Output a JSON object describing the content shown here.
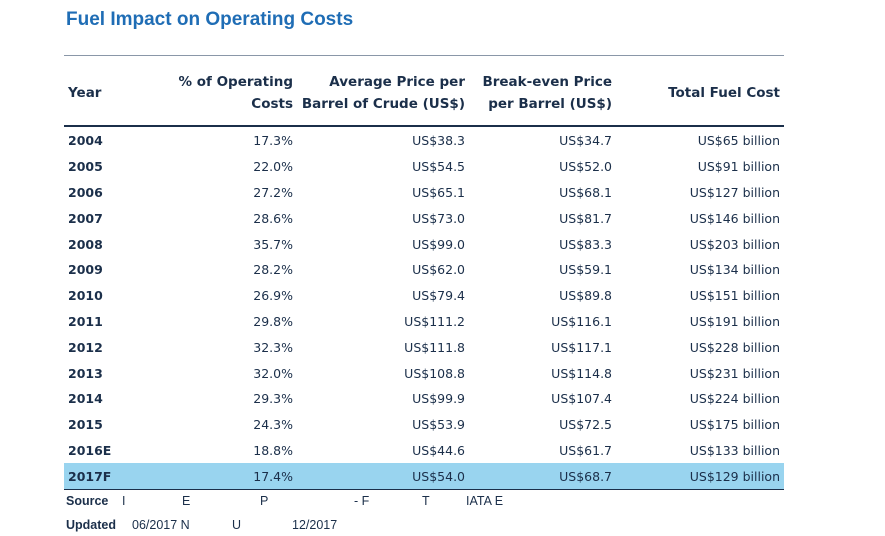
{
  "title": "Fuel Impact on Operating Costs",
  "headers": {
    "year": "Year",
    "pct_line1": "% of Operating",
    "pct_line2": "Costs",
    "avg_line1": "Average Price per",
    "avg_line2": "Barrel of Crude (US$)",
    "be_line1": "Break-even Price",
    "be_line2": "per Barrel (US$)",
    "total": "Total Fuel Cost"
  },
  "rows": [
    {
      "year": "2004",
      "pct": "17.3%",
      "avg": "US$38.3",
      "breakeven": "US$34.7",
      "total": "US$65 billion"
    },
    {
      "year": "2005",
      "pct": "22.0%",
      "avg": "US$54.5",
      "breakeven": "US$52.0",
      "total": "US$91 billion"
    },
    {
      "year": "2006",
      "pct": "27.2%",
      "avg": "US$65.1",
      "breakeven": "US$68.1",
      "total": "US$127 billion"
    },
    {
      "year": "2007",
      "pct": "28.6%",
      "avg": "US$73.0",
      "breakeven": "US$81.7",
      "total": "US$146 billion"
    },
    {
      "year": "2008",
      "pct": "35.7%",
      "avg": "US$99.0",
      "breakeven": "US$83.3",
      "total": "US$203 billion"
    },
    {
      "year": "2009",
      "pct": "28.2%",
      "avg": "US$62.0",
      "breakeven": "US$59.1",
      "total": "US$134 billion"
    },
    {
      "year": "2010",
      "pct": "26.9%",
      "avg": "US$79.4",
      "breakeven": "US$89.8",
      "total": "US$151 billion"
    },
    {
      "year": "2011",
      "pct": "29.8%",
      "avg": "US$111.2",
      "breakeven": "US$116.1",
      "total": "US$191 billion"
    },
    {
      "year": "2012",
      "pct": "32.3%",
      "avg": "US$111.8",
      "breakeven": "US$117.1",
      "total": "US$228 billion"
    },
    {
      "year": "2013",
      "pct": "32.0%",
      "avg": "US$108.8",
      "breakeven": "US$114.8",
      "total": "US$231 billion"
    },
    {
      "year": "2014",
      "pct": "29.3%",
      "avg": "US$99.9",
      "breakeven": "US$107.4",
      "total": "US$224 billion"
    },
    {
      "year": "2015",
      "pct": "24.3%",
      "avg": "US$53.9",
      "breakeven": "US$72.5",
      "total": "US$175 billion"
    },
    {
      "year": "2016E",
      "pct": "18.8%",
      "avg": "US$44.6",
      "breakeven": "US$61.7",
      "total": "US$133 billion"
    },
    {
      "year": "2017F",
      "pct": "17.4%",
      "avg": "US$54.0",
      "breakeven": "US$68.7",
      "total": "US$129 billion",
      "highlight": true
    }
  ],
  "source": {
    "label": "Source",
    "fragments": [
      "I",
      "E",
      "P",
      "- F",
      "T",
      "IATA E"
    ]
  },
  "updated": {
    "label": "Updated",
    "fragments": [
      "06/2017 N",
      "U",
      "12/2017"
    ]
  },
  "colors": {
    "title": "#1f6db5",
    "highlight_row": "#99d4ef",
    "text": "#1b2f4a"
  }
}
